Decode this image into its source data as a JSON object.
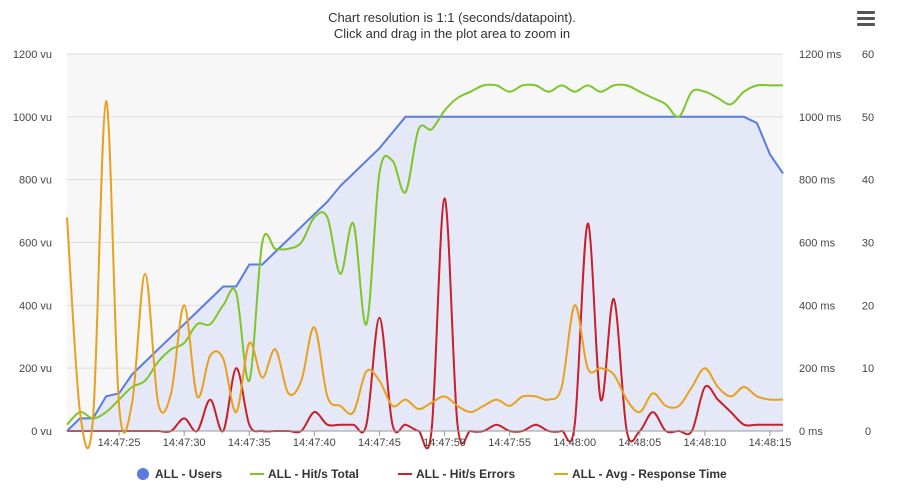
{
  "colors": {
    "users": "#5b7be0",
    "users_fill": "#e5e8f7",
    "hits_total": "#7ec628",
    "hits_errors": "#c8202a",
    "avg_response": "#e8a01e",
    "plot_bg": "#f7f7f7",
    "grid": "#dddddd"
  },
  "header": {
    "title_line1": "Chart resolution is 1:1 (seconds/datapoint).",
    "title_line2": "Click and drag in the plot area to zoom in",
    "menu_icon": "hamburger-menu-icon"
  },
  "chart_data": {
    "type": "line",
    "title": "Chart resolution is 1:1 (seconds/datapoint). Click and drag in the plot area to zoom in",
    "x": [
      "14:47:21",
      "14:47:22",
      "14:47:23",
      "14:47:24",
      "14:47:25",
      "14:47:26",
      "14:47:27",
      "14:47:28",
      "14:47:29",
      "14:47:30",
      "14:47:31",
      "14:47:32",
      "14:47:33",
      "14:47:34",
      "14:47:35",
      "14:47:36",
      "14:47:37",
      "14:47:38",
      "14:47:39",
      "14:47:40",
      "14:47:41",
      "14:47:42",
      "14:47:43",
      "14:47:44",
      "14:47:45",
      "14:47:46",
      "14:47:47",
      "14:47:48",
      "14:47:49",
      "14:47:50",
      "14:47:51",
      "14:47:52",
      "14:47:53",
      "14:47:54",
      "14:47:55",
      "14:47:56",
      "14:47:57",
      "14:47:58",
      "14:47:59",
      "14:48:00",
      "14:48:01",
      "14:48:02",
      "14:48:03",
      "14:48:04",
      "14:48:05",
      "14:48:06",
      "14:48:07",
      "14:48:08",
      "14:48:09",
      "14:48:10",
      "14:48:11",
      "14:48:12",
      "14:48:13",
      "14:48:14",
      "14:48:15",
      "14:48:16"
    ],
    "x_tick_labels": [
      "14:47:25",
      "14:47:30",
      "14:47:35",
      "14:47:40",
      "14:47:45",
      "14:47:50",
      "14:47:55",
      "14:48:00",
      "14:48:05",
      "14:48:10",
      "14:48:15"
    ],
    "y_axes": [
      {
        "id": "vu",
        "side": "left",
        "ticks": [
          "0 vu",
          "200 vu",
          "400 vu",
          "600 vu",
          "800 vu",
          "1000 vu",
          "1200 vu"
        ],
        "ylim": [
          0,
          1200
        ]
      },
      {
        "id": "ms",
        "side": "right",
        "ticks": [
          "0 ms",
          "200 ms",
          "400 ms",
          "600 ms",
          "800 ms",
          "1000 ms",
          "1200 ms"
        ],
        "ylim": [
          0,
          1200
        ]
      },
      {
        "id": "hits",
        "side": "right",
        "ticks": [
          "0",
          "10",
          "20",
          "30",
          "40",
          "50",
          "60"
        ],
        "ylim": [
          0,
          60
        ]
      }
    ],
    "grid": true,
    "legend_position": "bottom",
    "series": [
      {
        "name": "ALL - Users",
        "axis": "vu",
        "type": "area",
        "color": "#5b7be0",
        "values": [
          0,
          40,
          40,
          110,
          120,
          180,
          220,
          260,
          300,
          340,
          380,
          420,
          460,
          460,
          530,
          530,
          570,
          610,
          650,
          690,
          730,
          780,
          820,
          860,
          900,
          950,
          1000,
          1000,
          1000,
          1000,
          1000,
          1000,
          1000,
          1000,
          1000,
          1000,
          1000,
          1000,
          1000,
          1000,
          1000,
          1000,
          1000,
          1000,
          1000,
          1000,
          1000,
          1000,
          1000,
          1000,
          1000,
          1000,
          1000,
          980,
          880,
          820
        ]
      },
      {
        "name": "ALL - Hit/s Total",
        "axis": "hits",
        "type": "line",
        "color": "#7ec628",
        "values": [
          1,
          3,
          2,
          3,
          5,
          7,
          8,
          11,
          13,
          14,
          17,
          17,
          20,
          22,
          8,
          30,
          29,
          29,
          30,
          34,
          34,
          25,
          33,
          17,
          41,
          43,
          38,
          48,
          48,
          51,
          53,
          54,
          55,
          55,
          54,
          55,
          55,
          54,
          55,
          54,
          55,
          54,
          55,
          55,
          54,
          53,
          52,
          50,
          54,
          54,
          53,
          52,
          54,
          55,
          55,
          55
        ]
      },
      {
        "name": "ALL - Hit/s Errors",
        "axis": "hits",
        "type": "line",
        "color": "#c8202a",
        "values": [
          0,
          0,
          0,
          0,
          0,
          0,
          0,
          0,
          0,
          2,
          0,
          5,
          0,
          10,
          1,
          0,
          0,
          0,
          0,
          3,
          1,
          1,
          1,
          1,
          18,
          1,
          1,
          0,
          0,
          37,
          1,
          0,
          0,
          1,
          0,
          0,
          1,
          0,
          0,
          1,
          33,
          5,
          21,
          0,
          0,
          3,
          0,
          0,
          0,
          7,
          5,
          3,
          1,
          1,
          1,
          1
        ]
      },
      {
        "name": "ALL - Avg - Response Time",
        "axis": "ms",
        "type": "line",
        "color": "#e8a01e",
        "values": [
          680,
          60,
          40,
          1050,
          80,
          90,
          500,
          90,
          120,
          400,
          110,
          240,
          230,
          60,
          280,
          170,
          260,
          120,
          160,
          330,
          110,
          80,
          60,
          190,
          160,
          80,
          100,
          70,
          90,
          110,
          80,
          60,
          80,
          100,
          80,
          110,
          110,
          100,
          140,
          400,
          200,
          200,
          180,
          100,
          60,
          120,
          80,
          80,
          140,
          200,
          140,
          110,
          140,
          110,
          100,
          100
        ]
      }
    ]
  },
  "legend": [
    {
      "label": "ALL - Users",
      "color": "#5b7be0",
      "shape": "circle"
    },
    {
      "label": "ALL - Hit/s Total",
      "color": "#7ec628",
      "shape": "line"
    },
    {
      "label": "ALL - Hit/s Errors",
      "color": "#c8202a",
      "shape": "line"
    },
    {
      "label": "ALL - Avg - Response Time",
      "color": "#e8a01e",
      "shape": "line"
    }
  ]
}
